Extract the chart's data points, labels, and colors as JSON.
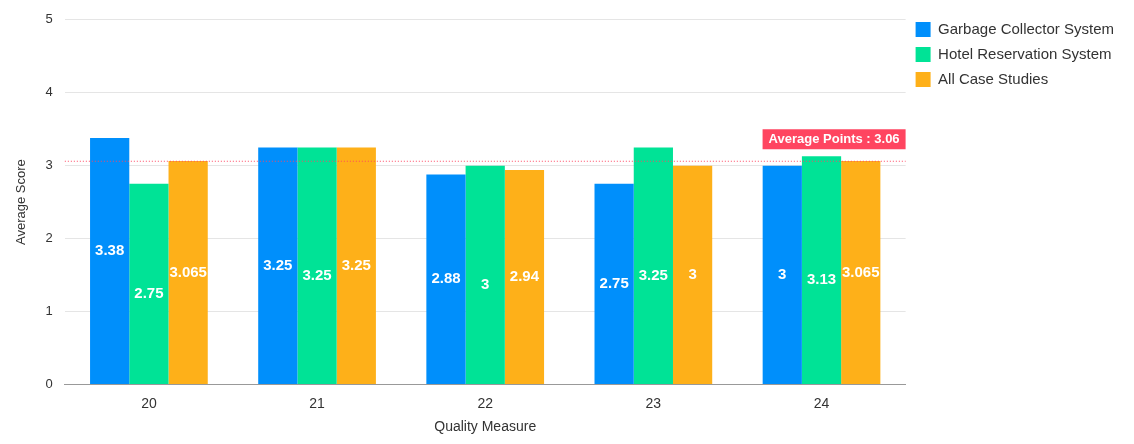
{
  "chart_data": {
    "type": "bar",
    "xlabel": "Quality Measure",
    "ylabel": "Average Score",
    "categories": [
      "20",
      "21",
      "22",
      "23",
      "24"
    ],
    "series": [
      {
        "name": "Garbage Collector System",
        "color": "#008ffb",
        "values": [
          3.38,
          3.25,
          2.88,
          2.75,
          3
        ]
      },
      {
        "name": "Hotel Reservation System",
        "color": "#00e396",
        "values": [
          2.75,
          3.25,
          3,
          3.25,
          3.13
        ]
      },
      {
        "name": "All Case Studies",
        "color": "#feb019",
        "values": [
          3.065,
          3.25,
          2.94,
          3,
          3.065
        ]
      }
    ],
    "ylim": [
      0,
      5
    ],
    "yticks": [
      0,
      1,
      2,
      3,
      4,
      5
    ],
    "grid": "y",
    "legend": "right",
    "data_labels": true,
    "ref_lines": [
      {
        "axis": "y",
        "value": 3.06,
        "label": "Average Points : 3.06",
        "color": "#ff4560",
        "line_style": "dotted"
      }
    ]
  }
}
